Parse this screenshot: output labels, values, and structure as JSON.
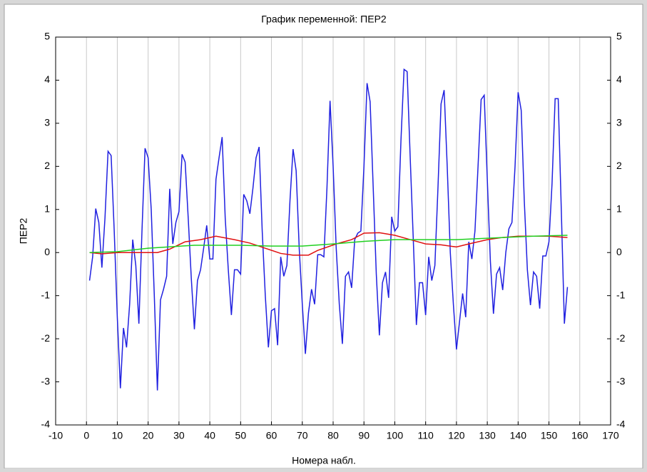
{
  "chart_data": {
    "type": "line",
    "title": "График переменной: ПЕР2",
    "xlabel": "Номера набл.",
    "ylabel": "ПЕР2",
    "xlim": [
      -10,
      170
    ],
    "xticks": [
      -10,
      0,
      10,
      20,
      30,
      40,
      50,
      60,
      70,
      80,
      90,
      100,
      110,
      120,
      130,
      140,
      150,
      160,
      170
    ],
    "ylim": [
      -4,
      5
    ],
    "yticks": [
      -4,
      -3,
      -2,
      -1,
      0,
      1,
      2,
      3,
      4,
      5
    ],
    "y2lim": [
      -4,
      5
    ],
    "y2ticks": [
      -4,
      -3,
      -2,
      -1,
      0,
      1,
      2,
      3,
      4,
      5
    ],
    "grid": "vertical",
    "series": [
      {
        "color": "#2020e0",
        "x": [
          1,
          2,
          3,
          4,
          5,
          6,
          7,
          8,
          9,
          10,
          11,
          12,
          13,
          14,
          15,
          16,
          17,
          18,
          19,
          20,
          21,
          22,
          23,
          24,
          25,
          26,
          27,
          28,
          29,
          30,
          31,
          32,
          33,
          34,
          35,
          36,
          37,
          38,
          39,
          40,
          41,
          42,
          43,
          44,
          45,
          46,
          47,
          48,
          49,
          50,
          51,
          52,
          53,
          54,
          55,
          56,
          57,
          58,
          59,
          60,
          61,
          62,
          63,
          64,
          65,
          66,
          67,
          68,
          69,
          70,
          71,
          72,
          73,
          74,
          75,
          76,
          77,
          78,
          79,
          80,
          81,
          82,
          83,
          84,
          85,
          86,
          87,
          88,
          89,
          90,
          91,
          92,
          93,
          94,
          95,
          96,
          97,
          98,
          99,
          100,
          101,
          102,
          103,
          104,
          105,
          106,
          107,
          108,
          109,
          110,
          111,
          112,
          113,
          114,
          115,
          116,
          117,
          118,
          119,
          120,
          121,
          122,
          123,
          124,
          125,
          126,
          127,
          128,
          129,
          130,
          131,
          132,
          133,
          134,
          135,
          136,
          137,
          138,
          139,
          140,
          141,
          142,
          143,
          144,
          145,
          146,
          147,
          148,
          149,
          150,
          151,
          152,
          153,
          154,
          155,
          156
        ],
        "values": [
          -0.65,
          -0.1,
          1.02,
          0.7,
          -0.35,
          0.8,
          2.35,
          2.25,
          0.5,
          -1.5,
          -3.15,
          -1.75,
          -2.2,
          -1.2,
          0.3,
          -0.3,
          -1.65,
          0.5,
          2.42,
          2.2,
          1.0,
          -1.0,
          -3.2,
          -1.1,
          -0.85,
          -0.55,
          1.48,
          0.2,
          0.7,
          0.95,
          2.28,
          2.1,
          0.8,
          -0.6,
          -1.78,
          -0.65,
          -0.4,
          0.1,
          0.63,
          -0.15,
          -0.15,
          1.7,
          2.2,
          2.68,
          0.8,
          -0.4,
          -1.45,
          -0.4,
          -0.4,
          -0.5,
          1.35,
          1.2,
          0.9,
          1.5,
          2.2,
          2.45,
          0.5,
          -1.0,
          -2.2,
          -1.35,
          -1.3,
          -2.15,
          -0.1,
          -0.55,
          -0.3,
          1.2,
          2.4,
          1.9,
          0.1,
          -1.2,
          -2.35,
          -1.4,
          -0.85,
          -1.2,
          -0.05,
          -0.05,
          -0.1,
          1.5,
          3.52,
          2.0,
          0.1,
          -1.2,
          -2.12,
          -0.55,
          -0.45,
          -0.82,
          0.3,
          0.45,
          0.5,
          2.0,
          3.93,
          3.5,
          1.5,
          -0.5,
          -1.92,
          -0.7,
          -0.45,
          -1.05,
          0.83,
          0.5,
          0.6,
          2.6,
          4.25,
          4.2,
          2.2,
          0.3,
          -1.68,
          -0.7,
          -0.7,
          -1.45,
          -0.1,
          -0.65,
          -0.3,
          1.5,
          3.45,
          3.77,
          2.0,
          0.0,
          -1.2,
          -2.25,
          -1.6,
          -0.95,
          -1.5,
          0.25,
          -0.15,
          0.5,
          2.0,
          3.55,
          3.65,
          1.7,
          -0.2,
          -1.42,
          -0.5,
          -0.35,
          -0.87,
          0.0,
          0.55,
          0.7,
          2.0,
          3.72,
          3.3,
          1.2,
          -0.4,
          -1.22,
          -0.45,
          -0.55,
          -1.3,
          -0.08,
          -0.08,
          0.25,
          1.6,
          3.57,
          3.57,
          1.0,
          -1.65,
          -0.8
        ]
      },
      {
        "color": "#e01010",
        "x": [
          1,
          5,
          10,
          15,
          20,
          23,
          27,
          32,
          37,
          42,
          48,
          53,
          58,
          63,
          67,
          72,
          75,
          81,
          86,
          90,
          95,
          100,
          105,
          110,
          115,
          120,
          124,
          130,
          135,
          140,
          145,
          150,
          156
        ],
        "values": [
          0.0,
          -0.03,
          0.0,
          0.0,
          0.0,
          0.0,
          0.08,
          0.25,
          0.3,
          0.38,
          0.3,
          0.22,
          0.1,
          -0.02,
          -0.06,
          -0.06,
          0.05,
          0.2,
          0.3,
          0.45,
          0.46,
          0.4,
          0.3,
          0.2,
          0.18,
          0.13,
          0.2,
          0.3,
          0.35,
          0.38,
          0.38,
          0.38,
          0.35
        ]
      },
      {
        "color": "#20d020",
        "x": [
          1,
          10,
          20,
          35,
          50,
          60,
          70,
          80,
          90,
          100,
          110,
          120,
          135,
          145,
          156
        ],
        "values": [
          0.0,
          0.02,
          0.1,
          0.17,
          0.17,
          0.15,
          0.15,
          0.2,
          0.26,
          0.3,
          0.3,
          0.3,
          0.35,
          0.38,
          0.4
        ]
      }
    ]
  }
}
